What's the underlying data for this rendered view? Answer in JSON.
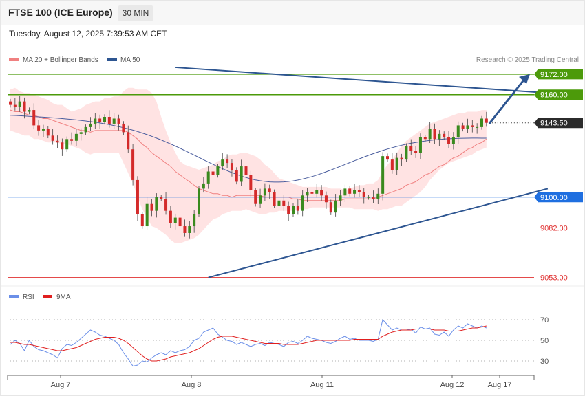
{
  "header": {
    "title": "FTSE 100 (ICE Europe)",
    "timeframe": "30 MIN",
    "timestamp": "Tuesday, August 12, 2025 7:39:53 AM CET"
  },
  "legend": {
    "ma20": "MA 20 + Bollinger Bands",
    "ma50": "MA 50",
    "copyright": "Research © 2025 Trading Central",
    "rsi": "RSI",
    "rsi_ma": "9MA"
  },
  "colors": {
    "green_level": "#4c9a0a",
    "blue_level": "#1f6fe0",
    "red_level": "#e03030",
    "current": "#2b2b2b",
    "trend": "#2d5591",
    "bull": "#3a8a1e",
    "bear": "#d42a2a",
    "band": "#ffdede",
    "ma20": "#f08080",
    "ma50": "#4a5d9e",
    "rsi": "#6b8fe8",
    "rsi_ma": "#e01f1f"
  },
  "chart_data": [
    {
      "type": "candlestick",
      "title": "FTSE 100 (ICE Europe)",
      "timeframe": "30 MIN",
      "ylim": [
        9048,
        9180
      ],
      "x_ticks": [
        "Aug 7",
        "Aug 8",
        "Aug 11",
        "Aug 12",
        "Aug 17"
      ],
      "current_price": "9143.50",
      "levels": [
        {
          "label": "9172.00",
          "value": 9172.0,
          "kind": "resistance-green"
        },
        {
          "label": "9160.00",
          "value": 9160.0,
          "kind": "resistance-green"
        },
        {
          "label": "9143.50",
          "value": 9143.5,
          "kind": "current"
        },
        {
          "label": "9100.00",
          "value": 9100.0,
          "kind": "pivot-blue"
        },
        {
          "label": "9082.00",
          "value": 9082.0,
          "kind": "support-red"
        },
        {
          "label": "9053.00",
          "value": 9053.0,
          "kind": "support-red"
        }
      ],
      "closes": [
        9154,
        9153,
        9156,
        9150,
        9151,
        9142,
        9139,
        9140,
        9136,
        9133,
        9132,
        9128,
        9134,
        9133,
        9137,
        9138,
        9141,
        9143,
        9146,
        9144,
        9147,
        9143,
        9146,
        9143,
        9138,
        9128,
        9110,
        9090,
        9083,
        9096,
        9092,
        9100,
        9099,
        9092,
        9085,
        9088,
        9083,
        9079,
        9083,
        9090,
        9105,
        9108,
        9115,
        9113,
        9118,
        9122,
        9120,
        9116,
        9109,
        9118,
        9113,
        9104,
        9096,
        9101,
        9105,
        9103,
        9095,
        9098,
        9095,
        9090,
        9095,
        9092,
        9101,
        9103,
        9102,
        9104,
        9101,
        9097,
        9091,
        9098,
        9101,
        9105,
        9102,
        9104,
        9103,
        9100,
        9100,
        9099,
        9102,
        9124,
        9122,
        9116,
        9123,
        9122,
        9130,
        9127,
        9126,
        9135,
        9134,
        9140,
        9134,
        9137,
        9135,
        9131,
        9135,
        9142,
        9140,
        9142,
        9141,
        9141,
        9146,
        9143.5
      ],
      "ma20": [
        9151,
        9150,
        9150,
        9149,
        9148,
        9148,
        9147,
        9146,
        9146,
        9145,
        9144,
        9143,
        9142,
        9141,
        9140,
        9139,
        9139,
        9138,
        9139,
        9139,
        9139,
        9139,
        9139,
        9139,
        9139,
        9138,
        9136,
        9134,
        9131,
        9129,
        9126,
        9124,
        9122,
        9120,
        9118,
        9115,
        9113,
        9111,
        9109,
        9107,
        9105,
        9104,
        9103,
        9102,
        9102,
        9101,
        9101,
        9100,
        9101,
        9101,
        9101,
        9101,
        9101,
        9101,
        9100,
        9100,
        9100,
        9100,
        9100,
        9100,
        9099,
        9099,
        9098,
        9098,
        9098,
        9098,
        9098,
        9098,
        9098,
        9098,
        9098,
        9099,
        9099,
        9099,
        9099,
        9099,
        9099,
        9099,
        9100,
        9101,
        9102,
        9103,
        9104,
        9105,
        9107,
        9108,
        9109,
        9111,
        9113,
        9114,
        9116,
        9118,
        9119,
        9121,
        9123,
        9124,
        9126,
        9128,
        9129,
        9131,
        9132,
        9134
      ],
      "bb_upper": [
        9163,
        9164,
        9162,
        9161,
        9161,
        9160,
        9159,
        9158,
        9157,
        9155,
        9154,
        9154,
        9152,
        9150,
        9151,
        9152,
        9154,
        9155,
        9156,
        9156,
        9158,
        9158,
        9159,
        9159,
        9162,
        9164,
        9164,
        9163,
        9163,
        9163,
        9161,
        9156,
        9147,
        9139,
        9132,
        9126,
        9121,
        9119,
        9118,
        9117,
        9116,
        9117,
        9118,
        9119,
        9121,
        9122,
        9124,
        9125,
        9125,
        9126,
        9126,
        9125,
        9124,
        9122,
        9119,
        9117,
        9114,
        9111,
        9110,
        9109,
        9108,
        9107,
        9106,
        9106,
        9106,
        9106,
        9106,
        9106,
        9105,
        9105,
        9105,
        9104,
        9105,
        9106,
        9107,
        9107,
        9108,
        9108,
        9110,
        9115,
        9119,
        9122,
        9126,
        9130,
        9133,
        9135,
        9137,
        9139,
        9141,
        9143,
        9144,
        9145,
        9146,
        9147,
        9148,
        9149,
        9149,
        9150,
        9150,
        9150,
        9151,
        9151
      ],
      "bb_lower": [
        9139,
        9138,
        9137,
        9136,
        9136,
        9134,
        9134,
        9133,
        9132,
        9132,
        9132,
        9131,
        9131,
        9130,
        9129,
        9128,
        9126,
        9125,
        9126,
        9126,
        9126,
        9126,
        9126,
        9126,
        9120,
        9114,
        9108,
        9100,
        9093,
        9088,
        9083,
        9082,
        9080,
        9078,
        9075,
        9073,
        9073,
        9074,
        9075,
        9076,
        9078,
        9081,
        9084,
        9087,
        9088,
        9090,
        9091,
        9092,
        9092,
        9092,
        9093,
        9092,
        9091,
        9090,
        9090,
        9091,
        9091,
        9092,
        9092,
        9092,
        9092,
        9093,
        9093,
        9093,
        9094,
        9094,
        9094,
        9094,
        9094,
        9094,
        9094,
        9094,
        9094,
        9093,
        9093,
        9093,
        9093,
        9093,
        9092,
        9093,
        9093,
        9094,
        9095,
        9095,
        9097,
        9099,
        9101,
        9103,
        9106,
        9110,
        9113,
        9116,
        9118,
        9120,
        9121,
        9122,
        9123,
        9124,
        9125,
        9127,
        9128,
        9129
      ],
      "ma50_start": 9148,
      "ma50_end": 9121,
      "trendlines": [
        {
          "from": {
            "bar": 35,
            "value": 9176
          },
          "to": {
            "bar": 114,
            "value": 9161
          }
        },
        {
          "from": {
            "bar": 42,
            "value": 9053
          },
          "to": {
            "bar": 114,
            "value": 9105
          }
        }
      ],
      "forecast_arrow": {
        "from_value": 9143,
        "to_value": 9172
      }
    },
    {
      "type": "line",
      "title": "RSI",
      "series": [
        {
          "name": "RSI",
          "values": [
            46,
            50,
            47,
            40,
            50,
            44,
            41,
            40,
            38,
            36,
            33,
            42,
            46,
            45,
            48,
            52,
            56,
            60,
            58,
            55,
            54,
            52,
            50,
            46,
            38,
            32,
            25,
            26,
            30,
            29,
            33,
            36,
            38,
            36,
            40,
            38,
            40,
            41,
            44,
            50,
            52,
            58,
            60,
            62,
            56,
            53,
            50,
            49,
            46,
            48,
            46,
            44,
            46,
            47,
            45,
            48,
            47,
            46,
            44,
            48,
            49,
            47,
            50,
            54,
            52,
            51,
            50,
            48,
            47,
            49,
            52,
            54,
            51,
            52,
            50,
            50,
            50,
            49,
            51,
            70,
            65,
            60,
            62,
            60,
            60,
            61,
            57,
            63,
            61,
            62,
            56,
            55,
            58,
            54,
            60,
            64,
            62,
            66,
            64,
            62,
            64,
            62
          ]
        },
        {
          "name": "9MA",
          "values": [
            48,
            48,
            47,
            46,
            46,
            45,
            44,
            43,
            42,
            41,
            40,
            40,
            41,
            42,
            43,
            45,
            47,
            49,
            51,
            52,
            53,
            53,
            53,
            52,
            50,
            47,
            43,
            39,
            35,
            32,
            30,
            30,
            31,
            32,
            34,
            35,
            36,
            37,
            38,
            40,
            42,
            45,
            48,
            51,
            53,
            54,
            54,
            54,
            53,
            52,
            51,
            50,
            49,
            48,
            47,
            47,
            47,
            47,
            46,
            46,
            46,
            46,
            47,
            48,
            49,
            50,
            50,
            50,
            50,
            50,
            50,
            50,
            50,
            51,
            51,
            51,
            51,
            51,
            51,
            54,
            56,
            58,
            59,
            60,
            60,
            60,
            61,
            61,
            61,
            61,
            60,
            60,
            60,
            59,
            59,
            59,
            60,
            61,
            62,
            62,
            63,
            64
          ]
        }
      ],
      "ylim": [
        20,
        80
      ],
      "levels": [
        "70",
        "50",
        "30"
      ]
    }
  ]
}
